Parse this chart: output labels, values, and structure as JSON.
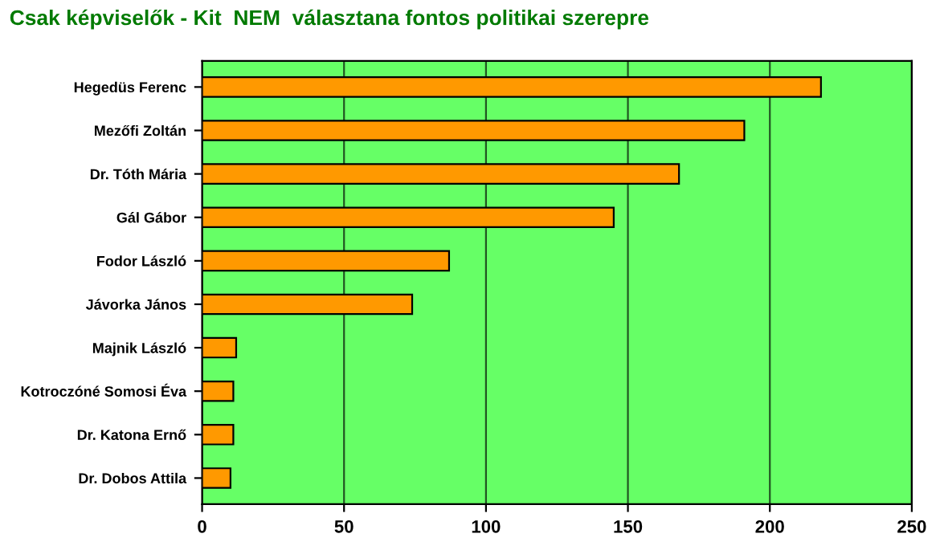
{
  "chart_data": {
    "type": "bar",
    "orientation": "horizontal",
    "title": "Csak képviselők - Kit  NEM  választana fontos politikai szerepre",
    "categories": [
      "Hegedüs Ferenc",
      "Mezőfi Zoltán",
      "Dr. Tóth Mária",
      "Gál Gábor",
      "Fodor László",
      "Jávorka János",
      "Majnik László",
      "Kotroczóné Somosi Éva",
      "Dr. Katona Ernő",
      "Dr. Dobos Attila"
    ],
    "values": [
      218,
      191,
      168,
      145,
      87,
      74,
      12,
      11,
      11,
      10
    ],
    "color": "#ff9900",
    "xlim": [
      0,
      250
    ],
    "xticks": [
      0,
      50,
      100,
      150,
      200,
      250
    ],
    "grid": "x"
  }
}
